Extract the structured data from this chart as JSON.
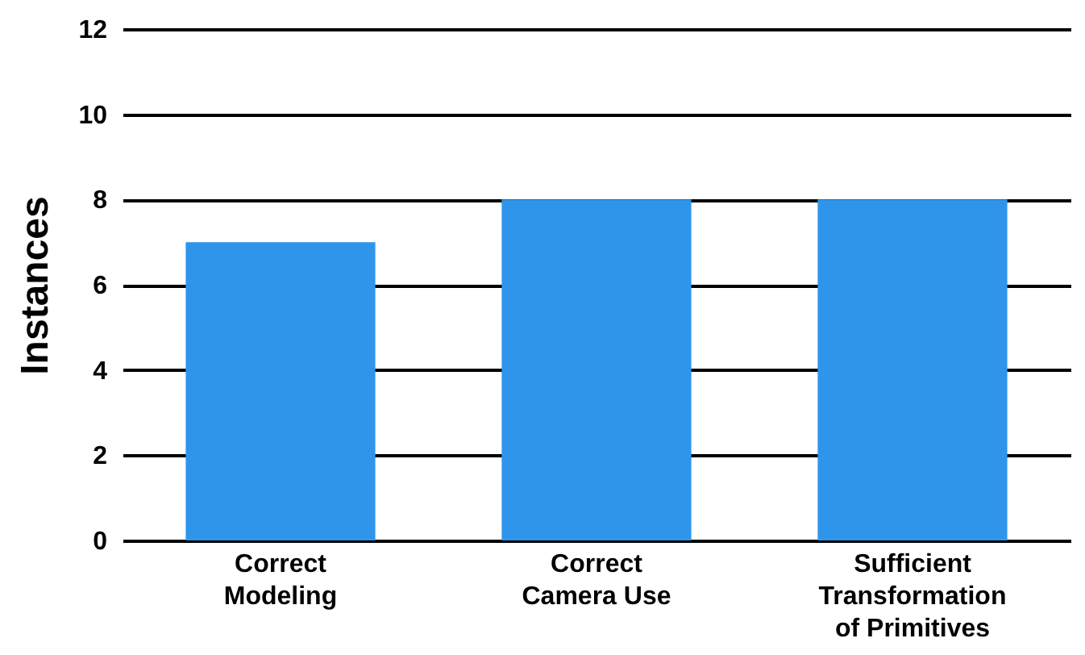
{
  "chart_data": {
    "type": "bar",
    "ylabel": "Instances",
    "categories": [
      "Correct Modeling",
      "Correct Camera Use",
      "Sufficient Transformation of Primitives"
    ],
    "values": [
      7,
      8,
      8
    ],
    "color": "#2f95ea",
    "ylim": [
      0,
      12
    ],
    "yticks": [
      0,
      2,
      4,
      6,
      8,
      10,
      12
    ],
    "grid": "y"
  }
}
